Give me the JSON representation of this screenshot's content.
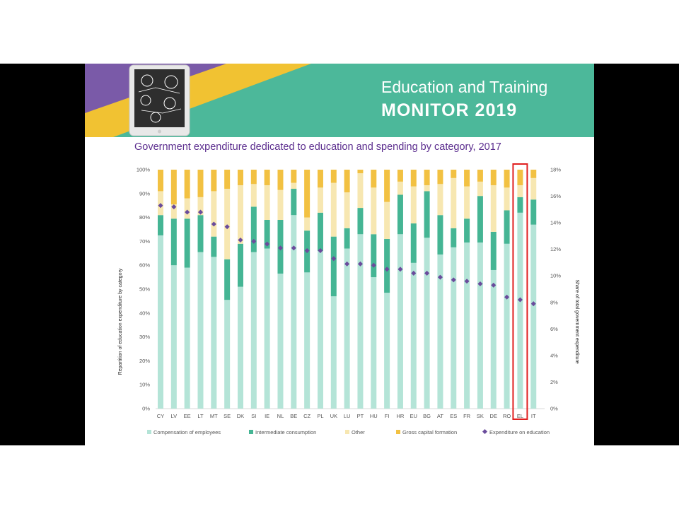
{
  "header": {
    "title_line1": "Education and Training",
    "title_line2": "MONITOR 2019"
  },
  "colors": {
    "banner": "#4cb89a",
    "purple_stripe": "#7a5aa8",
    "yellow_stripe": "#f1c232",
    "compensation": "#b4e4d7",
    "intermediate": "#45b594",
    "other": "#f7e7b1",
    "gross_capital": "#f2c142",
    "marker": "#6a4c9c",
    "highlight": "#e02020",
    "title": "#5b2d8e"
  },
  "chart_data": {
    "type": "bar",
    "stacked": true,
    "title": "Government expenditure dedicated to education and spending by category, 2017",
    "ylabel": "Repartition of education expenditure by category",
    "y2label": "Share of total government expenditure",
    "ylim": [
      0,
      100
    ],
    "y2lim": [
      0,
      18
    ],
    "yticks": [
      "0%",
      "10%",
      "20%",
      "30%",
      "40%",
      "50%",
      "60%",
      "70%",
      "80%",
      "90%",
      "100%"
    ],
    "y2ticks": [
      "0%",
      "2%",
      "4%",
      "6%",
      "8%",
      "10%",
      "12%",
      "14%",
      "16%",
      "18%"
    ],
    "categories": [
      "CY",
      "LV",
      "EE",
      "LT",
      "MT",
      "SE",
      "DK",
      "SI",
      "IE",
      "NL",
      "BE",
      "CZ",
      "PL",
      "UK",
      "LU",
      "PT",
      "HU",
      "FI",
      "HR",
      "EU",
      "BG",
      "AT",
      "ES",
      "FR",
      "SK",
      "DE",
      "RO",
      "EL",
      "IT"
    ],
    "highlight": "EL",
    "legend_position": "bottom",
    "series": [
      {
        "name": "Compensation of employees",
        "values": [
          72.5,
          60,
          59,
          65.5,
          63.5,
          45.5,
          51,
          65.5,
          67,
          56.5,
          81,
          57,
          66,
          47,
          67,
          73,
          55,
          48.5,
          73,
          61,
          71.5,
          64.5,
          67.5,
          69.5,
          69.5,
          58,
          69,
          82,
          77
        ]
      },
      {
        "name": "Intermediate consumption",
        "values": [
          8.5,
          19.5,
          20.5,
          15.5,
          8.5,
          17,
          18,
          19,
          12,
          22.5,
          11,
          17.5,
          16,
          25,
          8.5,
          11,
          18,
          22.5,
          16.5,
          16.5,
          19.5,
          16.5,
          8,
          10,
          19.5,
          16,
          14,
          6.5,
          10.5
        ]
      },
      {
        "name": "Other",
        "values": [
          10,
          6,
          8.5,
          7.5,
          19,
          29.5,
          24.5,
          9.5,
          14.5,
          12.5,
          2.5,
          5.5,
          10.5,
          22.5,
          15,
          14.5,
          19.5,
          15.5,
          5.5,
          15.5,
          2.5,
          13,
          21,
          13.5,
          6,
          19.5,
          9.5,
          5,
          9
        ]
      },
      {
        "name": "Gross capital formation",
        "values": [
          9,
          14.5,
          12,
          11.5,
          9,
          8,
          6.5,
          6,
          6.5,
          8.5,
          5.5,
          20,
          7.5,
          5.5,
          9.5,
          1.5,
          7.5,
          13.5,
          5,
          7,
          6.5,
          6,
          3.5,
          7,
          5,
          6.5,
          7.5,
          6.5,
          3.5
        ]
      }
    ],
    "line_series": {
      "name": "Expenditure on education",
      "axis": "secondary",
      "values": [
        15.3,
        15.2,
        14.8,
        14.8,
        13.9,
        13.7,
        12.7,
        12.6,
        12.4,
        12.1,
        12.1,
        11.9,
        11.9,
        11.3,
        10.9,
        10.9,
        10.8,
        10.5,
        10.5,
        10.2,
        10.2,
        9.9,
        9.7,
        9.6,
        9.4,
        9.3,
        8.4,
        8.2,
        7.9
      ]
    }
  }
}
